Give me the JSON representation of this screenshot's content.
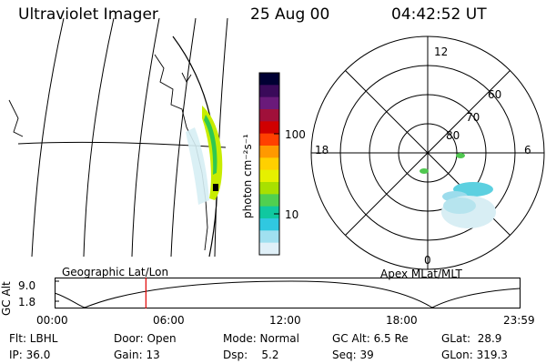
{
  "header": {
    "instrument": "Ultraviolet Imager",
    "date": "25 Aug 00",
    "time": "04:42:52 UT"
  },
  "colorbar": {
    "unit_label": "photon cm⁻²s⁻¹",
    "ticks": [
      "100",
      "10"
    ],
    "colors": [
      "#000033",
      "#3a0a5a",
      "#6a1a7a",
      "#a0103a",
      "#d00000",
      "#ff4000",
      "#ff9900",
      "#ffd000",
      "#e6f000",
      "#a8e000",
      "#50d050",
      "#10c8a0",
      "#30c8e0",
      "#a0e0f0",
      "#e0f0f8"
    ]
  },
  "polar_plot": {
    "title": "Apex MLat/MLT",
    "mlt_labels": {
      "top": "12",
      "left": "18",
      "right": "6",
      "bottom": "0"
    },
    "lat_labels": [
      "60",
      "70",
      "80"
    ]
  },
  "geo_plot": {
    "title": "Geographic Lat/Lon"
  },
  "altitude_plot": {
    "ylabel": "GC Alt",
    "yticks": [
      "9.0",
      "1.8"
    ],
    "xticks": [
      "00:00",
      "06:00",
      "12:00",
      "18:00",
      "23:59"
    ],
    "current_time_fraction": 0.196
  },
  "info": {
    "flt": "Flt: LBHL",
    "ip": "IP: 36.0",
    "door": "Door: Open",
    "gain": "Gain: 13",
    "mode": "Mode: Normal",
    "dsp": "Dsp:    5.2",
    "gcalt": "GC Alt: 6.5 Re",
    "seq": "Seq: 39",
    "glat": "GLat:  28.9",
    "glon": "GLon: 319.3"
  }
}
